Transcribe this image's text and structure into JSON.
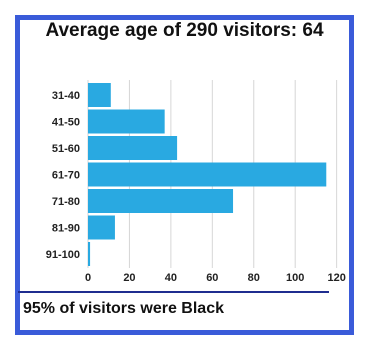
{
  "footer": "95% of visitors were Black",
  "chart_data": {
    "type": "bar",
    "orientation": "horizontal",
    "title": "Average age of 290 visitors: 64",
    "categories": [
      "31-40",
      "41-50",
      "51-60",
      "61-70",
      "71-80",
      "81-90",
      "91-100"
    ],
    "values": [
      11,
      37,
      43,
      115,
      70,
      13,
      1
    ],
    "xticks": [
      0,
      20,
      40,
      60,
      80,
      100,
      120
    ],
    "xlim": [
      0,
      125
    ],
    "xlabel": "",
    "ylabel": "",
    "grid": true,
    "bar_color": "#29a9e1"
  }
}
